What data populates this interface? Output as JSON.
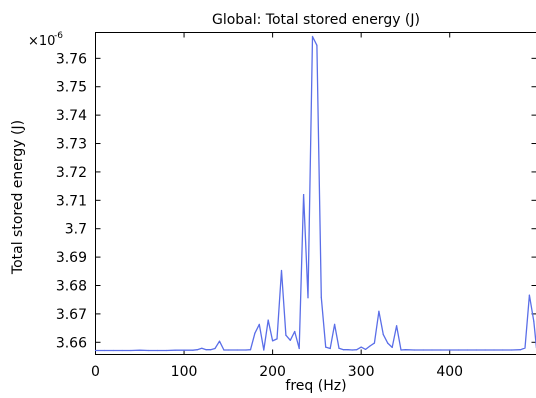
{
  "chart_data": {
    "type": "line",
    "title": "Global: Total stored energy (J)",
    "xlabel": "freq (Hz)",
    "ylabel": "Total stored energy (J)",
    "y_scale_label": "×10",
    "y_scale_exponent": "-6",
    "xlim": [
      0,
      498
    ],
    "ylim": [
      3.6557,
      3.7691
    ],
    "grid": false,
    "x_ticks": [
      0,
      100,
      200,
      300,
      400
    ],
    "y_ticks": [
      3.66,
      3.67,
      3.68,
      3.69,
      3.7,
      3.71,
      3.72,
      3.73,
      3.74,
      3.75,
      3.76
    ],
    "y_tick_labels": [
      "3.66",
      "3.67",
      "3.68",
      "3.69",
      "3.7",
      "3.71",
      "3.72",
      "3.73",
      "3.74",
      "3.75",
      "3.76"
    ],
    "x_tick_labels": [
      "0",
      "100",
      "200",
      "300",
      "400"
    ],
    "series": [
      {
        "color": "#5a6ee8",
        "x": [
          0,
          10,
          20,
          30,
          40,
          50,
          60,
          70,
          80,
          90,
          100,
          110,
          115,
          120,
          125,
          130,
          135,
          140,
          145,
          150,
          160,
          170,
          175,
          180,
          185,
          190,
          195,
          200,
          205,
          210,
          215,
          220,
          225,
          230,
          235,
          240,
          245,
          250,
          255,
          260,
          265,
          270,
          275,
          280,
          285,
          290,
          295,
          300,
          305,
          310,
          315,
          320,
          325,
          330,
          335,
          340,
          345,
          350,
          360,
          370,
          380,
          390,
          400,
          410,
          420,
          430,
          440,
          450,
          460,
          470,
          480,
          485,
          490,
          495,
          498
        ],
        "y": [
          3.6571,
          3.6571,
          3.6571,
          3.6571,
          3.6571,
          3.6572,
          3.6571,
          3.6571,
          3.6571,
          3.6572,
          3.6572,
          3.6572,
          3.6574,
          3.6579,
          3.6574,
          3.6574,
          3.6578,
          3.6604,
          3.6573,
          3.6573,
          3.6573,
          3.6573,
          3.6574,
          3.6632,
          3.6663,
          3.6573,
          3.6678,
          3.6605,
          3.6612,
          3.6853,
          3.6625,
          3.6607,
          3.6638,
          3.6578,
          3.712,
          3.6757,
          3.7677,
          3.7646,
          3.6758,
          3.6583,
          3.6578,
          3.6663,
          3.6579,
          3.6574,
          3.6574,
          3.6573,
          3.6574,
          3.6583,
          3.6575,
          3.6587,
          3.6597,
          3.6709,
          3.6627,
          3.6597,
          3.6582,
          3.6658,
          3.6573,
          3.6574,
          3.6573,
          3.6573,
          3.6573,
          3.6573,
          3.6573,
          3.6573,
          3.6573,
          3.6573,
          3.6573,
          3.6573,
          3.6573,
          3.6573,
          3.6574,
          3.658,
          3.6766,
          3.6674,
          3.658
        ]
      }
    ]
  }
}
